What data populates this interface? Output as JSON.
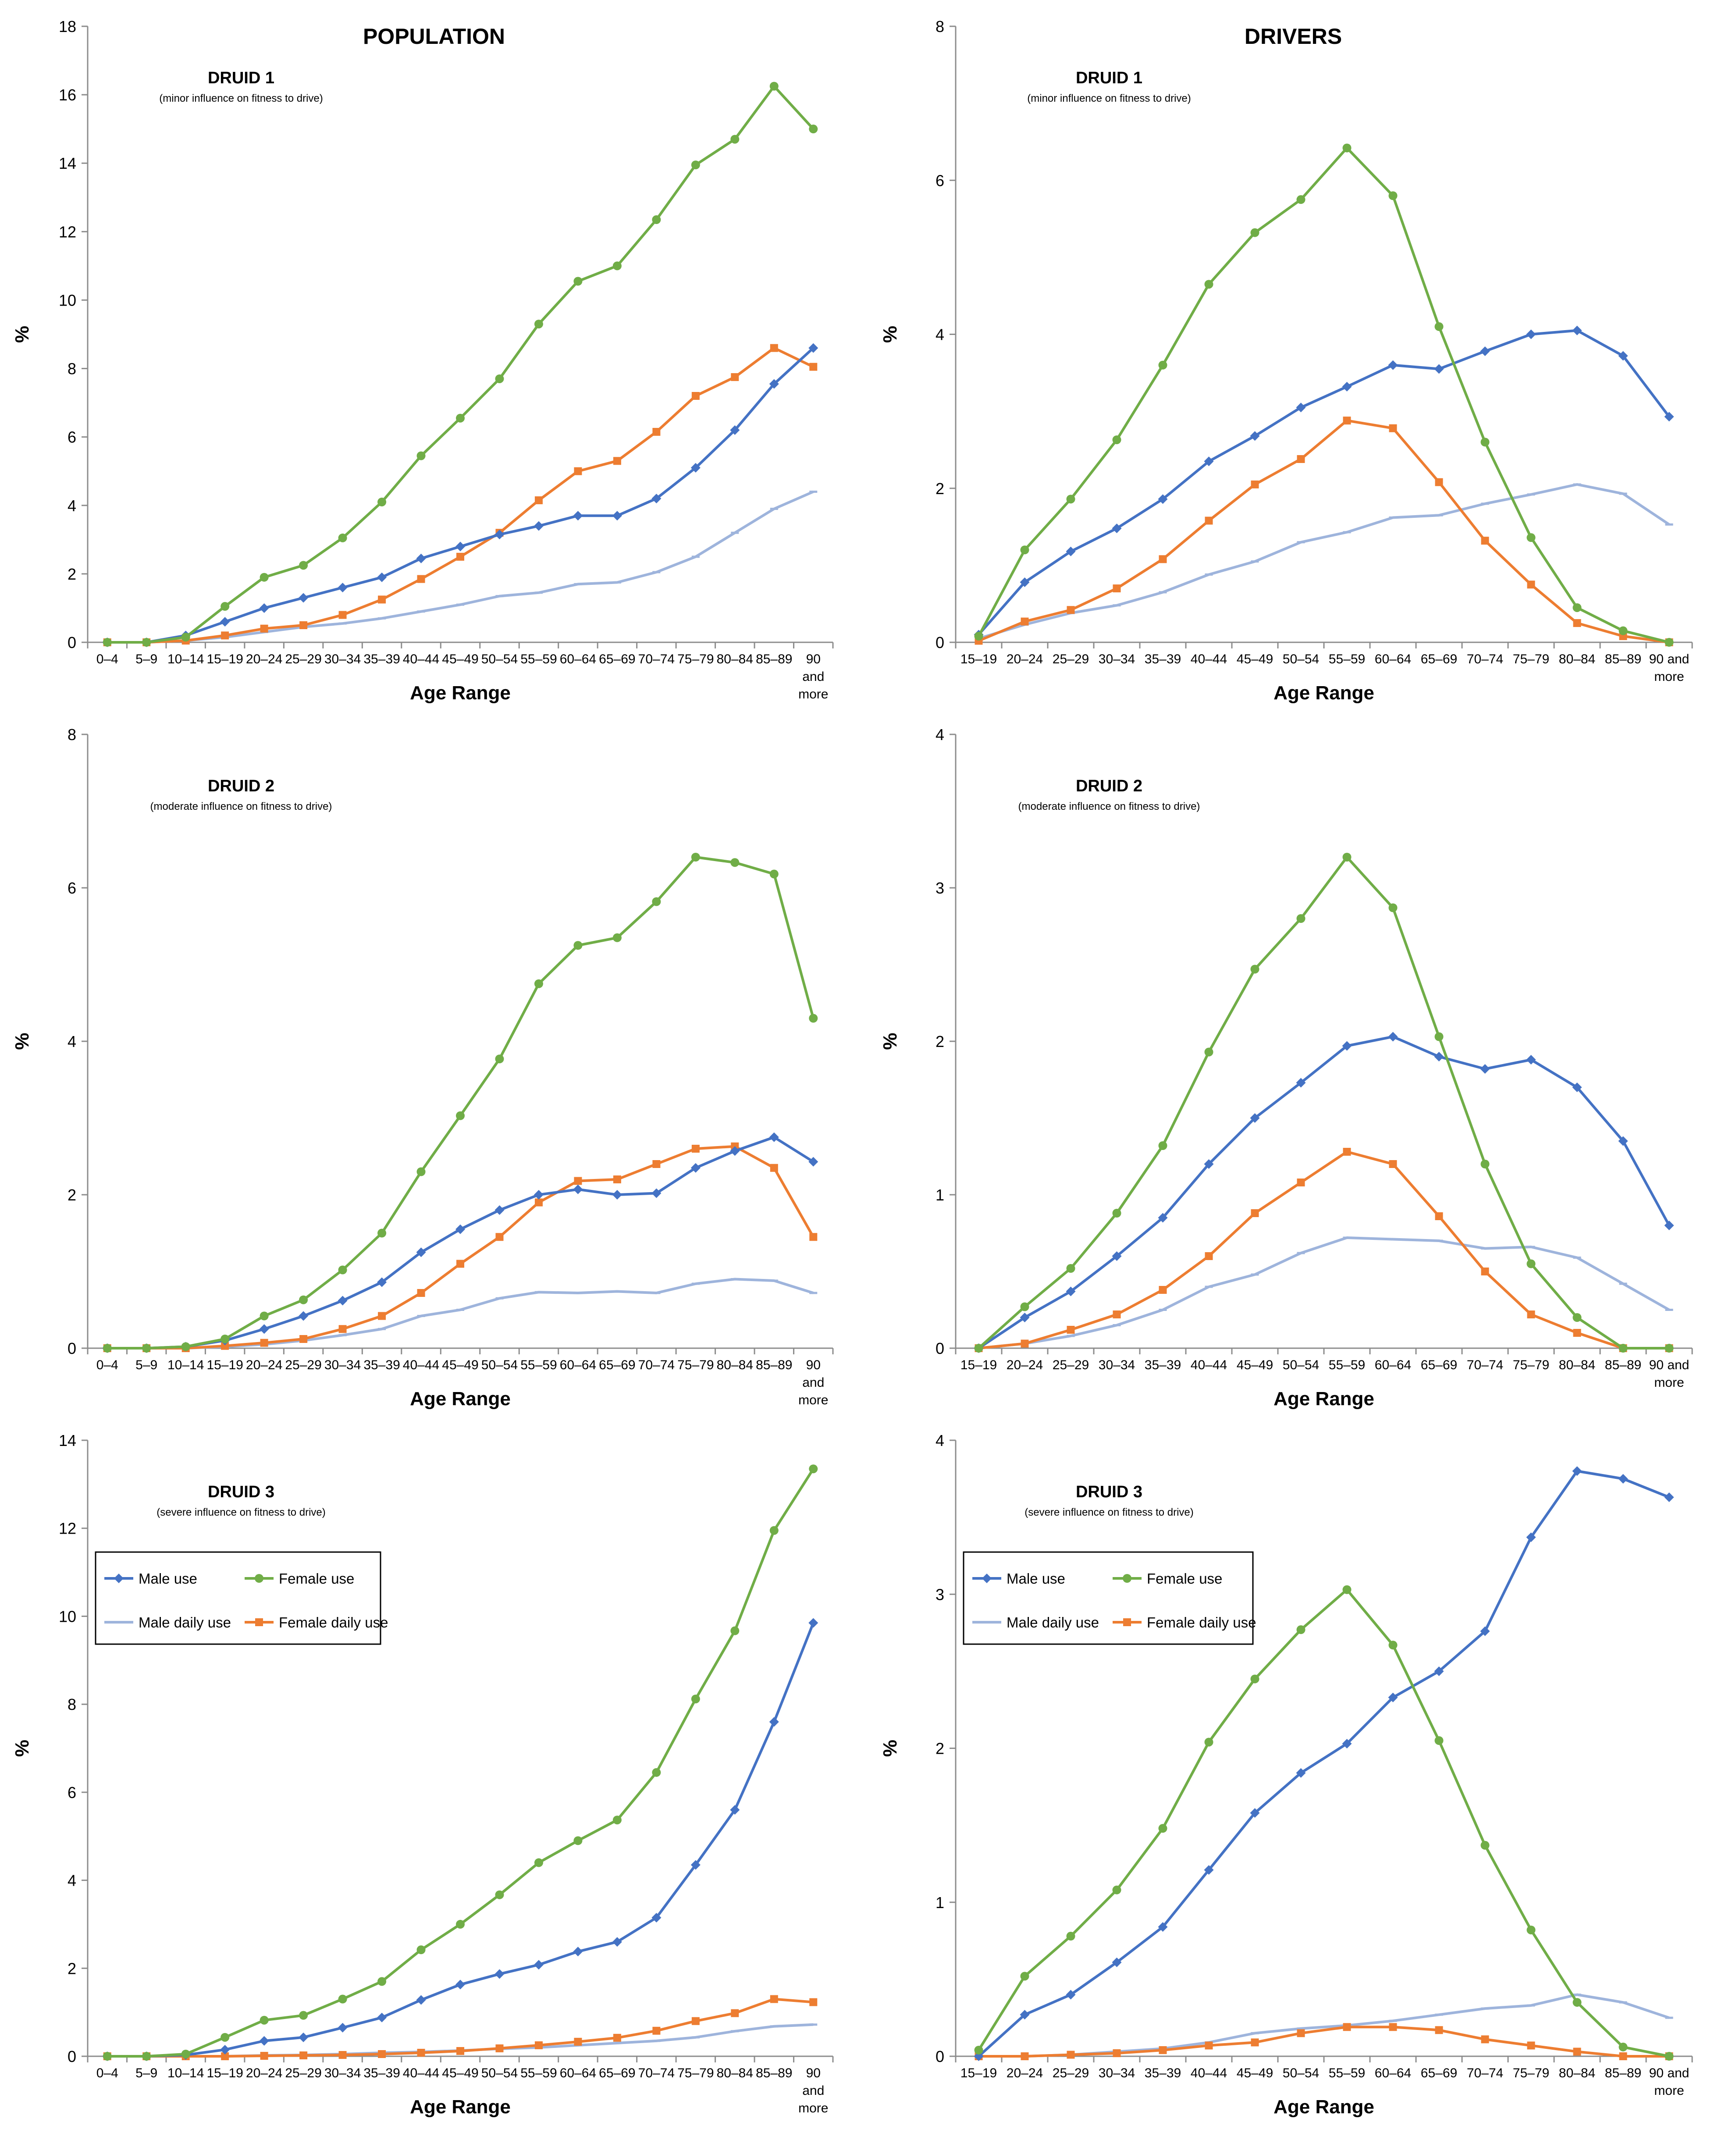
{
  "column_headers": [
    "POPULATION",
    "DRIVERS"
  ],
  "chart_data": [
    {
      "type": "line",
      "column": 0,
      "row": 0,
      "title": "DRUID 1",
      "subtitle": "(minor influence on fitness to drive)",
      "xlabel": "Age Range",
      "ylabel": "%",
      "ylim": [
        0,
        18
      ],
      "ytick_step": 2,
      "categories": [
        "0–4",
        "5–9",
        "10–14",
        "15–19",
        "20–24",
        "25–29",
        "30–34",
        "35–39",
        "40–44",
        "45–49",
        "50–54",
        "55–59",
        "60–64",
        "65–69",
        "70–74",
        "75–79",
        "80–84",
        "85–89",
        "90 and more"
      ],
      "series": [
        {
          "name": "Male use",
          "values": [
            0,
            0,
            0.2,
            0.6,
            1.0,
            1.3,
            1.6,
            1.9,
            2.45,
            2.8,
            3.15,
            3.4,
            3.7,
            3.7,
            4.2,
            5.1,
            6.2,
            7.55,
            8.6
          ]
        },
        {
          "name": "Female use",
          "values": [
            0,
            0,
            0.15,
            1.05,
            1.9,
            2.25,
            3.05,
            4.1,
            5.45,
            6.55,
            7.7,
            9.3,
            10.55,
            11.0,
            12.35,
            13.95,
            14.7,
            16.25,
            15.0
          ]
        },
        {
          "name": "Male daily use",
          "values": [
            0,
            0,
            0.05,
            0.15,
            0.3,
            0.45,
            0.55,
            0.7,
            0.9,
            1.1,
            1.35,
            1.45,
            1.7,
            1.75,
            2.05,
            2.5,
            3.2,
            3.9,
            4.4
          ]
        },
        {
          "name": "Female daily use",
          "values": [
            0,
            0,
            0.05,
            0.2,
            0.4,
            0.5,
            0.8,
            1.25,
            1.85,
            2.5,
            3.2,
            4.15,
            5.0,
            5.3,
            6.15,
            7.2,
            7.75,
            8.6,
            8.05
          ]
        }
      ]
    },
    {
      "type": "line",
      "column": 1,
      "row": 0,
      "title": "DRUID 1",
      "subtitle": "(minor influence on fitness to drive)",
      "xlabel": "Age Range",
      "ylabel": "%",
      "ylim": [
        0,
        8
      ],
      "ytick_step": 2,
      "categories": [
        "15–19",
        "20–24",
        "25–29",
        "30–34",
        "35–39",
        "40–44",
        "45–49",
        "50–54",
        "55–59",
        "60–64",
        "65–69",
        "70–74",
        "75–79",
        "80–84",
        "85–89",
        "90 and more"
      ],
      "series": [
        {
          "name": "Male use",
          "values": [
            0.1,
            0.78,
            1.18,
            1.48,
            1.86,
            2.35,
            2.68,
            3.05,
            3.32,
            3.6,
            3.55,
            3.78,
            4.0,
            4.05,
            3.72,
            2.93
          ]
        },
        {
          "name": "Female use",
          "values": [
            0.08,
            1.2,
            1.86,
            2.63,
            3.6,
            4.65,
            5.32,
            5.75,
            6.42,
            5.8,
            4.1,
            2.6,
            1.36,
            0.45,
            0.15,
            0.0
          ]
        },
        {
          "name": "Male daily use",
          "values": [
            0.05,
            0.23,
            0.38,
            0.48,
            0.65,
            0.88,
            1.05,
            1.3,
            1.43,
            1.62,
            1.65,
            1.8,
            1.92,
            2.05,
            1.93,
            1.53
          ]
        },
        {
          "name": "Female daily use",
          "values": [
            0.02,
            0.27,
            0.42,
            0.7,
            1.08,
            1.58,
            2.05,
            2.38,
            2.88,
            2.78,
            2.08,
            1.32,
            0.75,
            0.25,
            0.08,
            0.0
          ]
        }
      ]
    },
    {
      "type": "line",
      "column": 0,
      "row": 1,
      "title": "DRUID 2",
      "subtitle": "(moderate influence on fitness to drive)",
      "xlabel": "Age Range",
      "ylabel": "%",
      "ylim": [
        0,
        8
      ],
      "ytick_step": 2,
      "categories": [
        "0–4",
        "5–9",
        "10–14",
        "15–19",
        "20–24",
        "25–29",
        "30–34",
        "35–39",
        "40–44",
        "45–49",
        "50–54",
        "55–59",
        "60–64",
        "65–69",
        "70–74",
        "75–79",
        "80–84",
        "85–89",
        "90 and more"
      ],
      "series": [
        {
          "name": "Male use",
          "values": [
            0,
            0,
            0.02,
            0.1,
            0.25,
            0.42,
            0.62,
            0.86,
            1.25,
            1.55,
            1.8,
            2.0,
            2.07,
            2.0,
            2.02,
            2.35,
            2.57,
            2.75,
            2.43
          ]
        },
        {
          "name": "Female use",
          "values": [
            0,
            0,
            0.02,
            0.12,
            0.42,
            0.63,
            1.02,
            1.5,
            2.3,
            3.03,
            3.77,
            4.75,
            5.25,
            5.35,
            5.82,
            6.4,
            6.33,
            6.18,
            4.3
          ]
        },
        {
          "name": "Male daily use",
          "values": [
            0,
            0,
            0.0,
            0.02,
            0.05,
            0.1,
            0.17,
            0.25,
            0.42,
            0.5,
            0.65,
            0.73,
            0.72,
            0.74,
            0.72,
            0.84,
            0.9,
            0.88,
            0.72
          ]
        },
        {
          "name": "Female daily use",
          "values": [
            0,
            0,
            0.0,
            0.03,
            0.07,
            0.12,
            0.25,
            0.42,
            0.72,
            1.1,
            1.45,
            1.9,
            2.18,
            2.2,
            2.4,
            2.6,
            2.63,
            2.35,
            1.45
          ]
        }
      ]
    },
    {
      "type": "line",
      "column": 1,
      "row": 1,
      "title": "DRUID 2",
      "subtitle": "(moderate influence on fitness to drive)",
      "xlabel": "Age Range",
      "ylabel": "%",
      "ylim": [
        0,
        4
      ],
      "ytick_step": 1,
      "categories": [
        "15–19",
        "20–24",
        "25–29",
        "30–34",
        "35–39",
        "40–44",
        "45–49",
        "50–54",
        "55–59",
        "60–64",
        "65–69",
        "70–74",
        "75–79",
        "80–84",
        "85–89",
        "90 and more"
      ],
      "series": [
        {
          "name": "Male use",
          "values": [
            0.0,
            0.2,
            0.37,
            0.6,
            0.85,
            1.2,
            1.5,
            1.73,
            1.97,
            2.03,
            1.9,
            1.82,
            1.88,
            1.7,
            1.35,
            0.8
          ]
        },
        {
          "name": "Female use",
          "values": [
            0.0,
            0.27,
            0.52,
            0.88,
            1.32,
            1.93,
            2.47,
            2.8,
            3.2,
            2.87,
            2.03,
            1.2,
            0.55,
            0.2,
            0.0,
            0.0
          ]
        },
        {
          "name": "Male daily use",
          "values": [
            0.0,
            0.03,
            0.08,
            0.15,
            0.25,
            0.4,
            0.48,
            0.62,
            0.72,
            0.71,
            0.7,
            0.65,
            0.66,
            0.59,
            0.42,
            0.25
          ]
        },
        {
          "name": "Female daily use",
          "values": [
            0.0,
            0.03,
            0.12,
            0.22,
            0.38,
            0.6,
            0.88,
            1.08,
            1.28,
            1.2,
            0.86,
            0.5,
            0.22,
            0.1,
            0.0,
            0.0
          ]
        }
      ]
    },
    {
      "type": "line",
      "column": 0,
      "row": 2,
      "title": "DRUID 3",
      "subtitle": "(severe influence on fitness to drive)",
      "xlabel": "Age Range",
      "ylabel": "%",
      "ylim": [
        0,
        14
      ],
      "ytick_step": 2,
      "legend": "top-left",
      "categories": [
        "0–4",
        "5–9",
        "10–14",
        "15–19",
        "20–24",
        "25–29",
        "30–34",
        "35–39",
        "40–44",
        "45–49",
        "50–54",
        "55–59",
        "60–64",
        "65–69",
        "70–74",
        "75–79",
        "80–84",
        "85–89",
        "90 and more"
      ],
      "series": [
        {
          "name": "Male use",
          "values": [
            0,
            0,
            0.03,
            0.15,
            0.35,
            0.43,
            0.65,
            0.88,
            1.28,
            1.63,
            1.87,
            2.08,
            2.38,
            2.6,
            3.15,
            4.35,
            5.6,
            7.6,
            9.85
          ]
        },
        {
          "name": "Female use",
          "values": [
            0,
            0,
            0.05,
            0.43,
            0.82,
            0.93,
            1.3,
            1.7,
            2.42,
            3.0,
            3.67,
            4.4,
            4.9,
            5.37,
            6.45,
            8.12,
            9.67,
            11.95,
            13.35
          ]
        },
        {
          "name": "Male daily use",
          "values": [
            0,
            0,
            0.0,
            0.0,
            0.02,
            0.03,
            0.05,
            0.08,
            0.1,
            0.13,
            0.17,
            0.2,
            0.25,
            0.3,
            0.35,
            0.43,
            0.57,
            0.68,
            0.72
          ]
        },
        {
          "name": "Female daily use",
          "values": [
            0,
            0,
            0.0,
            0.0,
            0.01,
            0.02,
            0.03,
            0.05,
            0.08,
            0.12,
            0.18,
            0.25,
            0.33,
            0.42,
            0.58,
            0.8,
            0.98,
            1.3,
            1.23
          ]
        }
      ]
    },
    {
      "type": "line",
      "column": 1,
      "row": 2,
      "title": "DRUID 3",
      "subtitle": "(severe influence on fitness to drive)",
      "xlabel": "Age Range",
      "ylabel": "%",
      "ylim": [
        0,
        4
      ],
      "ytick_step": 1,
      "legend": "top-left",
      "categories": [
        "15–19",
        "20–24",
        "25–29",
        "30–34",
        "35–39",
        "40–44",
        "45–49",
        "50–54",
        "55–59",
        "60–64",
        "65–69",
        "70–74",
        "75–79",
        "80–84",
        "85–89",
        "90 and more"
      ],
      "series": [
        {
          "name": "Male use",
          "values": [
            0.0,
            0.27,
            0.4,
            0.61,
            0.84,
            1.21,
            1.58,
            1.84,
            2.03,
            2.33,
            2.5,
            2.76,
            3.37,
            3.8,
            3.75,
            3.63
          ]
        },
        {
          "name": "Female use",
          "values": [
            0.04,
            0.52,
            0.78,
            1.08,
            1.48,
            2.04,
            2.45,
            2.77,
            3.03,
            2.67,
            2.05,
            1.37,
            0.82,
            0.35,
            0.06,
            0.0
          ]
        },
        {
          "name": "Male daily use",
          "values": [
            0.0,
            0.0,
            0.01,
            0.03,
            0.05,
            0.09,
            0.15,
            0.18,
            0.2,
            0.23,
            0.27,
            0.31,
            0.33,
            0.4,
            0.35,
            0.25
          ]
        },
        {
          "name": "Female daily use",
          "values": [
            0.0,
            0.0,
            0.01,
            0.02,
            0.04,
            0.07,
            0.09,
            0.15,
            0.19,
            0.19,
            0.17,
            0.11,
            0.07,
            0.03,
            0.0,
            0.0
          ]
        }
      ]
    }
  ],
  "series_colors": {
    "Male use": "#4472c4",
    "Female use": "#70ad47",
    "Male daily use": "#9eb4dc",
    "Female daily use": "#ed7d31"
  },
  "series_markers": {
    "Male use": "diamond",
    "Female use": "circle",
    "Male daily use": "dash",
    "Female daily use": "square"
  }
}
